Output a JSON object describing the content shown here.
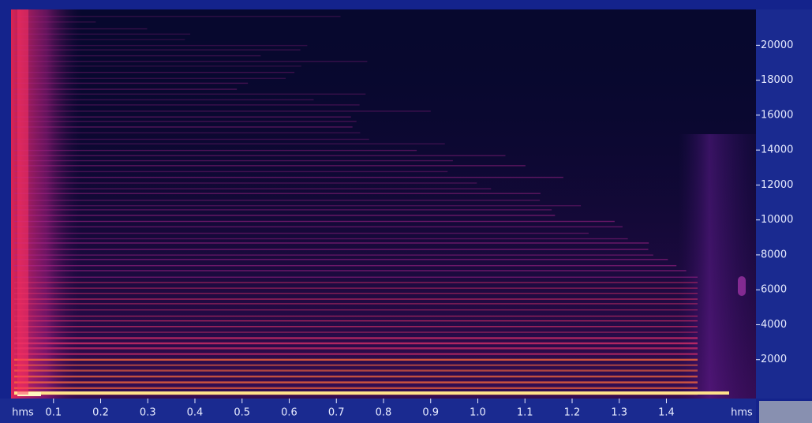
{
  "chart_data": {
    "type": "spectrogram",
    "xlim": [
      0.01,
      1.59
    ],
    "xticks": [
      0.1,
      0.2,
      0.3,
      0.4,
      0.5,
      0.6,
      0.7,
      0.8,
      0.9,
      {
        "value": 1,
        "label": "1.0"
      },
      1.1,
      1.2,
      1.3,
      1.4
    ],
    "x_unit_labels": [
      "hms",
      "hms"
    ],
    "ylim": [
      0,
      22050
    ],
    "yticks": [
      2000,
      4000,
      6000,
      8000,
      10000,
      12000,
      14000,
      16000,
      18000,
      20000
    ]
  }
}
